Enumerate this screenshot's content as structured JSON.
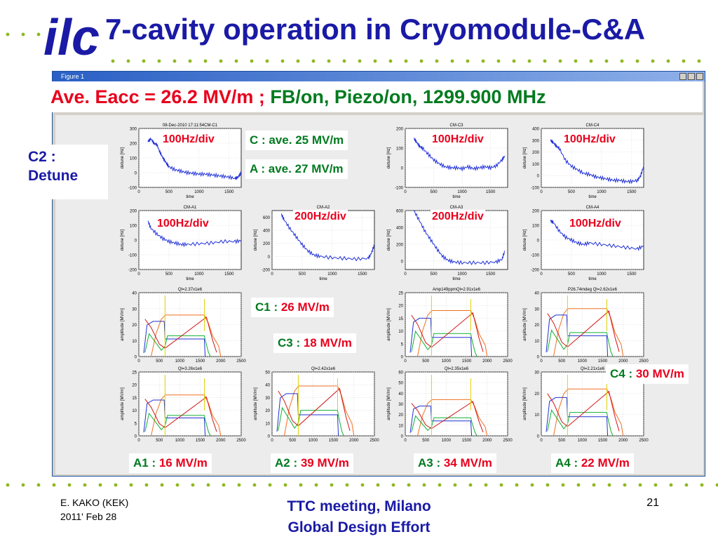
{
  "slide": {
    "title": "7-cavity operation in Cryomodule-C&A",
    "logo_text": "ilc",
    "headline_red": "Ave. Eacc = 26.2 MV/m ;",
    "headline_green": " FB/on, Piezo/on, 1299.900 MHz",
    "c2_note": "C2 : Detune",
    "footer_author": "E. KAKO (KEK)",
    "footer_date": "2011' Feb 28",
    "footer_center_1": "TTC meeting, Milano",
    "footer_center_2": "Global Design Effort",
    "page_number": "21"
  },
  "figure_window": {
    "title": "Figure 1"
  },
  "overlay_labels": {
    "c_ave_name": "C : ave. 25 MV/m",
    "a_ave_name": "A : ave. 27 MV/m",
    "c1": {
      "name": "C1 : ",
      "value": "26 MV/m"
    },
    "c3": {
      "name": "C3 : ",
      "value": "18 MV/m"
    },
    "c4": {
      "name": "C4 : ",
      "value": "30 MV/m"
    },
    "a1": {
      "name": "A1 : ",
      "value": "16 MV/m"
    },
    "a2": {
      "name": "A2 : ",
      "value": "39 MV/m"
    },
    "a3": {
      "name": "A3 : ",
      "value": "34 MV/m"
    },
    "a4": {
      "name": "A4 : ",
      "value": "22 MV/m"
    },
    "div_c1": "100Hz/div",
    "div_c3": "100Hz/div",
    "div_c4": "100Hz/div",
    "div_a1": "100Hz/div",
    "div_a2": "200Hz/div",
    "div_a3": "200Hz/div",
    "div_a4": "100Hz/div"
  },
  "colors": {
    "title": "#1a1aa6",
    "red": "#e8001c",
    "green": "#007a1f",
    "dots": "#8fb820",
    "trace_blue": "#1f2fd8"
  },
  "chart_data": [
    {
      "id": "cm-c1-detune",
      "type": "line",
      "title": "08-Dec-2010 17:11:54CM-C1",
      "xlabel": "time",
      "ylabel": "detune [Hz]",
      "xlim": [
        0,
        1700
      ],
      "ylim": [
        -100,
        300
      ],
      "xticks": [
        0,
        500,
        1000,
        1500
      ],
      "yticks": [
        -100,
        0,
        100,
        200,
        300
      ],
      "series": [
        {
          "x": [
            150,
            200,
            250,
            300,
            350,
            400,
            450,
            500,
            600,
            700,
            800,
            900,
            1000,
            1100,
            1200,
            1300,
            1400,
            1500,
            1600,
            1650,
            1700
          ],
          "y": [
            210,
            230,
            200,
            190,
            140,
            100,
            70,
            40,
            20,
            10,
            0,
            -5,
            -10,
            -10,
            -15,
            -20,
            -25,
            -30,
            -40,
            -30,
            0
          ]
        }
      ]
    },
    {
      "id": "cm-c3-detune",
      "type": "line",
      "title": "CM-C3",
      "xlabel": "time",
      "ylabel": "detune [Hz]",
      "xlim": [
        0,
        1800
      ],
      "ylim": [
        -100,
        200
      ],
      "xticks": [
        0,
        500,
        1000,
        1500
      ],
      "yticks": [
        -100,
        0,
        100,
        200
      ],
      "series": [
        {
          "x": [
            150,
            200,
            250,
            300,
            400,
            500,
            600,
            700,
            800,
            900,
            1000,
            1100,
            1200,
            1300,
            1400,
            1500,
            1600,
            1700,
            1750
          ],
          "y": [
            150,
            130,
            110,
            100,
            70,
            40,
            20,
            5,
            0,
            0,
            -5,
            5,
            -5,
            0,
            5,
            0,
            10,
            40,
            60
          ]
        }
      ]
    },
    {
      "id": "cm-c4-detune",
      "type": "line",
      "title": "CM-C4",
      "xlabel": "time",
      "ylabel": "detune [Hz]",
      "xlim": [
        0,
        1700
      ],
      "ylim": [
        -100,
        400
      ],
      "xticks": [
        0,
        500,
        1000,
        1500
      ],
      "yticks": [
        -100,
        0,
        100,
        200,
        300,
        400
      ],
      "series": [
        {
          "x": [
            150,
            200,
            250,
            300,
            400,
            500,
            600,
            700,
            800,
            900,
            1000,
            1100,
            1200,
            1300,
            1400,
            1500,
            1600,
            1650,
            1700
          ],
          "y": [
            300,
            280,
            250,
            230,
            130,
            80,
            50,
            20,
            10,
            -10,
            -20,
            -30,
            -40,
            -40,
            -50,
            -50,
            -40,
            0,
            80
          ]
        }
      ]
    },
    {
      "id": "cm-a1-detune",
      "type": "line",
      "title": "CM-A1",
      "xlabel": "time",
      "ylabel": "detune [Hz]",
      "xlim": [
        0,
        1700
      ],
      "ylim": [
        -200,
        200
      ],
      "xticks": [
        0,
        500,
        1000,
        1500
      ],
      "yticks": [
        -200,
        -100,
        0,
        100,
        200
      ],
      "series": [
        {
          "x": [
            150,
            200,
            300,
            400,
            500,
            600,
            700,
            800,
            1000,
            1200,
            1400,
            1600,
            1700
          ],
          "y": [
            130,
            80,
            40,
            10,
            -10,
            -20,
            -30,
            -30,
            -25,
            -20,
            -10,
            -10,
            -5
          ]
        }
      ]
    },
    {
      "id": "cm-a2-detune",
      "type": "line",
      "title": "CM-A2",
      "xlabel": "time",
      "ylabel": "detune [Hz]",
      "xlim": [
        0,
        1700
      ],
      "ylim": [
        -200,
        700
      ],
      "xticks": [
        0,
        500,
        1000,
        1500
      ],
      "yticks": [
        -200,
        0,
        200,
        400,
        600
      ],
      "series": [
        {
          "x": [
            150,
            200,
            300,
            400,
            500,
            600,
            700,
            800,
            1000,
            1200,
            1400,
            1600,
            1650,
            1700
          ],
          "y": [
            650,
            560,
            420,
            300,
            180,
            80,
            20,
            0,
            -20,
            -30,
            -40,
            -30,
            50,
            180
          ]
        }
      ]
    },
    {
      "id": "cm-a3-detune",
      "type": "line",
      "title": "CM-A3",
      "xlabel": "time",
      "ylabel": "detune [Hz]",
      "xlim": [
        0,
        1800
      ],
      "ylim": [
        -100,
        600
      ],
      "xticks": [
        0,
        500,
        1000,
        1500
      ],
      "yticks": [
        0,
        200,
        400,
        600
      ],
      "series": [
        {
          "x": [
            150,
            250,
            350,
            450,
            550,
            650,
            750,
            850,
            1000,
            1200,
            1400,
            1600,
            1700,
            1750
          ],
          "y": [
            600,
            480,
            350,
            250,
            150,
            60,
            10,
            -10,
            -20,
            -20,
            -20,
            -10,
            20,
            120
          ]
        }
      ]
    },
    {
      "id": "cm-a4-detune",
      "type": "line",
      "title": "CM-A4",
      "xlabel": "time",
      "ylabel": "detune [Hz]",
      "xlim": [
        0,
        1700
      ],
      "ylim": [
        -200,
        200
      ],
      "xticks": [
        0,
        500,
        1000,
        1500
      ],
      "yticks": [
        -200,
        -100,
        0,
        100,
        200
      ],
      "series": [
        {
          "x": [
            150,
            200,
            300,
            400,
            500,
            600,
            700,
            800,
            1000,
            1200,
            1400,
            1600,
            1700
          ],
          "y": [
            130,
            120,
            60,
            20,
            0,
            -20,
            -30,
            -20,
            -30,
            -40,
            -50,
            -60,
            -40
          ]
        }
      ]
    },
    {
      "id": "cm-c1-amp",
      "type": "line",
      "title": "Ql=2.37x1e6",
      "xlabel": "",
      "ylabel": "amplitude [MV/m]",
      "xlim": [
        0,
        2500
      ],
      "ylim": [
        0,
        40
      ],
      "xticks": [
        0,
        500,
        1000,
        1500,
        2000,
        2500
      ],
      "yticks": [
        0,
        10,
        20,
        30,
        40
      ],
      "flat": 26,
      "tx": 13,
      "fwd": 22
    },
    {
      "id": "cm-c3-amp",
      "type": "line",
      "title": "Amp149ppmQl=2.91x1e6",
      "xlabel": "",
      "ylabel": "amplitude [MV/m]",
      "xlim": [
        0,
        2500
      ],
      "ylim": [
        0,
        25
      ],
      "xticks": [
        0,
        500,
        1000,
        1500,
        2000,
        2500
      ],
      "yticks": [
        0,
        5,
        10,
        15,
        20,
        25
      ],
      "flat": 18,
      "tx": 9,
      "fwd": 15
    },
    {
      "id": "cm-c4-amp",
      "type": "line",
      "title": "P26.74mdeg Ql=2.62x1e6",
      "xlabel": "",
      "ylabel": "amplitude [MV/m]",
      "xlim": [
        0,
        2500
      ],
      "ylim": [
        0,
        40
      ],
      "xticks": [
        0,
        500,
        1000,
        1500,
        2000,
        2500
      ],
      "yticks": [
        0,
        10,
        20,
        30,
        40
      ],
      "flat": 30,
      "tx": 15,
      "fwd": 26
    },
    {
      "id": "cm-a1-amp",
      "type": "line",
      "title": "Ql=3.26x1e6",
      "xlabel": "",
      "ylabel": "amplitude [MV/m]",
      "xlim": [
        0,
        2500
      ],
      "ylim": [
        0,
        25
      ],
      "xticks": [
        0,
        500,
        1000,
        1500,
        2000,
        2500
      ],
      "yticks": [
        0,
        5,
        10,
        15,
        20,
        25
      ],
      "flat": 16,
      "tx": 8,
      "fwd": 14
    },
    {
      "id": "cm-a2-amp",
      "type": "line",
      "title": "Ql=2.42x1e6",
      "xlabel": "",
      "ylabel": "amplitude [MV/m]",
      "xlim": [
        0,
        2500
      ],
      "ylim": [
        0,
        50
      ],
      "xticks": [
        0,
        500,
        1000,
        1500,
        2000,
        2500
      ],
      "yticks": [
        0,
        10,
        20,
        30,
        40,
        50
      ],
      "flat": 39,
      "tx": 20,
      "fwd": 33
    },
    {
      "id": "cm-a3-amp",
      "type": "line",
      "title": "Ql=2.35x1e6",
      "xlabel": "",
      "ylabel": "amplitude [MV/m]",
      "xlim": [
        0,
        2500
      ],
      "ylim": [
        0,
        60
      ],
      "xticks": [
        0,
        500,
        1000,
        1500,
        2000,
        2500
      ],
      "yticks": [
        0,
        10,
        20,
        30,
        40,
        50,
        60
      ],
      "flat": 34,
      "tx": 17,
      "fwd": 28
    },
    {
      "id": "cm-a4-amp",
      "type": "line",
      "title": "Ql=2.21x1e6",
      "xlabel": "",
      "ylabel": "amplitude [MV/m]",
      "xlim": [
        0,
        2500
      ],
      "ylim": [
        0,
        30
      ],
      "xticks": [
        0,
        500,
        1000,
        1500,
        2000,
        2500
      ],
      "yticks": [
        0,
        10,
        20,
        30
      ],
      "flat": 22,
      "tx": 11,
      "fwd": 18
    }
  ]
}
